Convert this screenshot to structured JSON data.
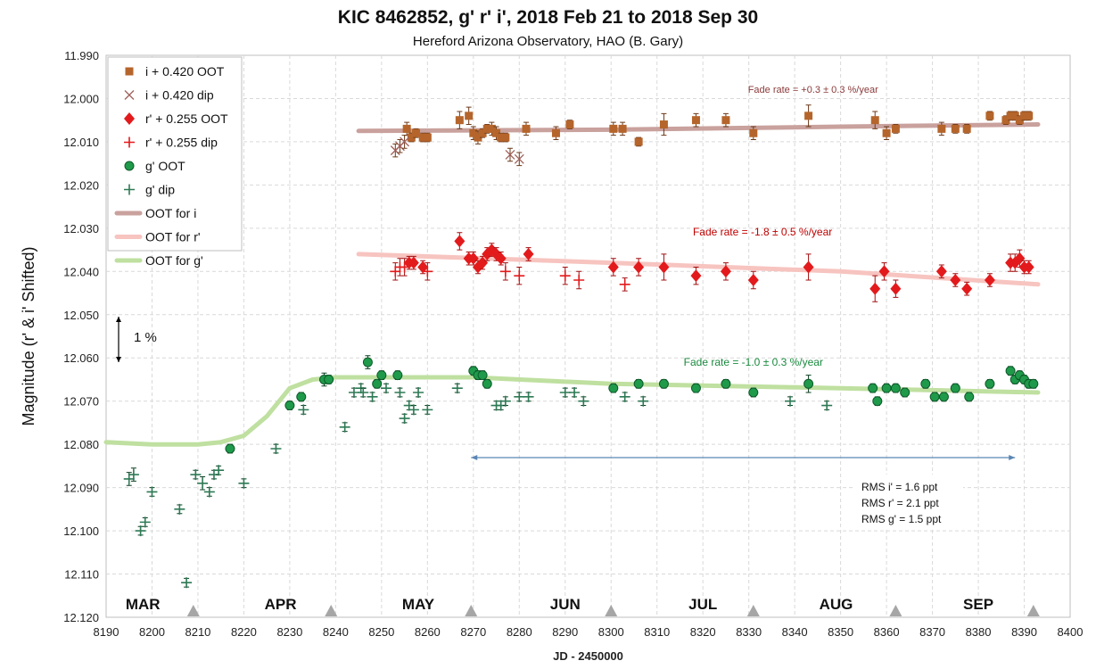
{
  "chart_data": {
    "type": "scatter",
    "title": "KIC 8462852, g' r' i', 2018 Feb 21 to 2018 Sep 30",
    "subtitle": "Hereford Arizona Observatory, HAO (B. Gary)",
    "xlabel": "JD - 2450000",
    "ylabel": "Magnitude  (r' & i' Shifted)",
    "xlim": [
      8190,
      8400
    ],
    "ylim": [
      11.99,
      12.12
    ],
    "y_inverted": true,
    "xticks": [
      "8190",
      "8200",
      "8210",
      "8220",
      "8230",
      "8240",
      "8250",
      "8260",
      "8270",
      "8280",
      "8290",
      "8300",
      "8310",
      "8320",
      "8330",
      "8340",
      "8350",
      "8360",
      "8370",
      "8380",
      "8390",
      "8400"
    ],
    "yticks": [
      "11.990",
      "12.000",
      "12.010",
      "12.020",
      "12.030",
      "12.040",
      "12.050",
      "12.060",
      "12.070",
      "12.080",
      "12.090",
      "12.100",
      "12.110",
      "12.120"
    ],
    "grid": true,
    "legend_position": "top-left",
    "legend": [
      "i + 0.420 OOT",
      "i + 0.420 dip",
      "r' + 0.255 OOT",
      "r' + 0.255 dip",
      "g' OOT",
      "g' dip",
      "OOT for i",
      "OOT for r'",
      "OOT for g'"
    ],
    "colors": {
      "i": "#b5652b",
      "i_dip": "#a0605a",
      "r": "#e31a1c",
      "g": "#1f9a4a",
      "g_dip": "#2e7a55",
      "line_i": "#c9a19d",
      "line_r": "#f7c4c0",
      "line_g": "#bfe0a0",
      "annot_arrow": "#5b86b4"
    },
    "month_labels": [
      "MAR",
      "APR",
      "MAY",
      "JUN",
      "JUL",
      "AUG",
      "SEP"
    ],
    "month_label_x": [
      8198,
      8228,
      8258,
      8290,
      8320,
      8349,
      8380
    ],
    "month_boundaries": [
      8209,
      8239,
      8269.5,
      8300,
      8331,
      8362,
      8392
    ],
    "annotations": {
      "fade_i": "Fade rate = +0.3 ± 0.3 %/year",
      "fade_r": "Fade rate = -1.8 ± 0.5 %/year",
      "fade_g": "Fade rate = -1.0 ± 0.3 %/year",
      "scale_bar": "1 %",
      "rms": [
        "RMS i'  = 1.6 ppt",
        "RMS r'  = 2.1 ppt",
        "RMS g' = 1.5 ppt"
      ]
    },
    "series": [
      {
        "name": "i + 0.420 OOT",
        "marker": "square",
        "x": [
          8255.5,
          8256.5,
          8257.5,
          8259,
          8260,
          8267,
          8269,
          8270,
          8271,
          8272,
          8273,
          8274,
          8275,
          8276,
          8277,
          8281.5,
          8288,
          8291,
          8300.5,
          8302.5,
          8306,
          8311.5,
          8318.5,
          8325,
          8331,
          8343,
          8357.5,
          8360,
          8362,
          8372,
          8375,
          8377.5,
          8382.5,
          8386,
          8387,
          8388,
          8389,
          8390,
          8391
        ],
        "y": [
          12.007,
          12.009,
          12.008,
          12.009,
          12.009,
          12.005,
          12.004,
          12.008,
          12.009,
          12.008,
          12.007,
          12.007,
          12.008,
          12.009,
          12.009,
          12.007,
          12.008,
          12.006,
          12.007,
          12.007,
          12.01,
          12.006,
          12.005,
          12.005,
          12.008,
          12.004,
          12.005,
          12.008,
          12.007,
          12.007,
          12.007,
          12.007,
          12.004,
          12.005,
          12.004,
          12.004,
          12.005,
          12.004,
          12.004
        ],
        "err": [
          0.0015,
          0.001,
          0.001,
          0.001,
          0.001,
          0.002,
          0.002,
          0.0015,
          0.0015,
          0.001,
          0.001,
          0.0015,
          0.0015,
          0.001,
          0.001,
          0.0015,
          0.0015,
          0.001,
          0.0015,
          0.0015,
          0.001,
          0.0025,
          0.0015,
          0.0015,
          0.0015,
          0.0025,
          0.002,
          0.0015,
          0.001,
          0.0015,
          0.001,
          0.001,
          0.001,
          0.001,
          0.001,
          0.001,
          0.001,
          0.001,
          0.001
        ]
      },
      {
        "name": "i + 0.420 dip",
        "marker": "x",
        "x": [
          8253,
          8254,
          8255,
          8278,
          8280
        ],
        "y": [
          12.012,
          12.011,
          12.01,
          12.013,
          12.014
        ],
        "err": [
          0.0015,
          0.0015,
          0.0015,
          0.0015,
          0.0015
        ]
      },
      {
        "name": "r' + 0.255 OOT",
        "marker": "diamond",
        "x": [
          8256,
          8257,
          8259,
          8267,
          8269,
          8270,
          8271,
          8272,
          8273,
          8274,
          8275,
          8276,
          8282,
          8300.5,
          8306,
          8311.5,
          8318.5,
          8325,
          8331,
          8343,
          8357.5,
          8359.5,
          8362,
          8372,
          8375,
          8377.5,
          8382.5,
          8387,
          8388,
          8389,
          8390,
          8391
        ],
        "y": [
          12.038,
          12.038,
          12.039,
          12.033,
          12.037,
          12.037,
          12.039,
          12.038,
          12.036,
          12.035,
          12.036,
          12.037,
          12.036,
          12.039,
          12.039,
          12.039,
          12.041,
          12.04,
          12.042,
          12.039,
          12.044,
          12.04,
          12.044,
          12.04,
          12.042,
          12.044,
          12.042,
          12.038,
          12.038,
          12.037,
          12.039,
          12.039
        ],
        "err": [
          0.0015,
          0.0015,
          0.0015,
          0.002,
          0.0015,
          0.0015,
          0.0015,
          0.0015,
          0.0015,
          0.0015,
          0.0015,
          0.0015,
          0.0015,
          0.002,
          0.002,
          0.003,
          0.002,
          0.002,
          0.002,
          0.003,
          0.003,
          0.002,
          0.002,
          0.0015,
          0.0015,
          0.0015,
          0.0015,
          0.002,
          0.002,
          0.002,
          0.0015,
          0.0015
        ]
      },
      {
        "name": "r' + 0.255 dip",
        "marker": "plus",
        "x": [
          8253,
          8254,
          8255,
          8260,
          8277,
          8280,
          8290,
          8293,
          8303
        ],
        "y": [
          12.04,
          12.039,
          12.039,
          12.04,
          12.04,
          12.041,
          12.041,
          12.042,
          12.043
        ],
        "err": [
          0.002,
          0.002,
          0.002,
          0.002,
          0.002,
          0.002,
          0.002,
          0.002,
          0.0015
        ]
      },
      {
        "name": "g' OOT",
        "marker": "circle",
        "x": [
          8217,
          8230,
          8232.5,
          8237.5,
          8238.5,
          8247,
          8249,
          8250,
          8253.5,
          8270,
          8271,
          8272,
          8273,
          8300.5,
          8306,
          8311.5,
          8318.5,
          8325,
          8331,
          8343,
          8357,
          8358,
          8360,
          8362,
          8364,
          8368.5,
          8370.5,
          8372.5,
          8375,
          8378,
          8382.5,
          8387,
          8388,
          8389,
          8390,
          8391,
          8392
        ],
        "y": [
          12.081,
          12.071,
          12.069,
          12.065,
          12.065,
          12.061,
          12.066,
          12.064,
          12.064,
          12.063,
          12.064,
          12.064,
          12.066,
          12.067,
          12.066,
          12.066,
          12.067,
          12.066,
          12.068,
          12.066,
          12.067,
          12.07,
          12.067,
          12.067,
          12.068,
          12.066,
          12.069,
          12.069,
          12.067,
          12.069,
          12.066,
          12.063,
          12.065,
          12.064,
          12.065,
          12.066,
          12.066
        ],
        "err": [
          0.001,
          0.001,
          0.001,
          0.0015,
          0.001,
          0.0015,
          0.001,
          0.001,
          0.001,
          0.001,
          0.001,
          0.001,
          0.001,
          0.001,
          0.001,
          0.001,
          0.001,
          0.001,
          0.001,
          0.002,
          0.001,
          0.001,
          0.001,
          0.001,
          0.001,
          0.001,
          0.001,
          0.001,
          0.001,
          0.001,
          0.001,
          0.001,
          0.001,
          0.001,
          0.001,
          0.001,
          0.001
        ]
      },
      {
        "name": "g' dip",
        "marker": "plus",
        "x": [
          8195,
          8196,
          8197.5,
          8198.5,
          8200,
          8206,
          8207.5,
          8209.5,
          8211,
          8212.5,
          8213.5,
          8214.5,
          8220,
          8227,
          8233,
          8242,
          8244,
          8245.5,
          8246,
          8248,
          8251,
          8254,
          8255,
          8256,
          8257,
          8258,
          8260,
          8266.5,
          8275,
          8276,
          8277,
          8280,
          8282,
          8290,
          8292,
          8294,
          8303,
          8307,
          8339,
          8347
        ],
        "y": [
          12.088,
          12.087,
          12.1,
          12.098,
          12.091,
          12.095,
          12.112,
          12.087,
          12.089,
          12.091,
          12.087,
          12.086,
          12.089,
          12.081,
          12.072,
          12.076,
          12.068,
          12.067,
          12.068,
          12.069,
          12.067,
          12.068,
          12.074,
          12.071,
          12.072,
          12.068,
          12.072,
          12.067,
          12.071,
          12.071,
          12.07,
          12.069,
          12.069,
          12.068,
          12.068,
          12.07,
          12.069,
          12.07,
          12.07,
          12.071
        ],
        "err": [
          0.0015,
          0.0015,
          0.001,
          0.001,
          0.001,
          0.001,
          0.001,
          0.001,
          0.0015,
          0.001,
          0.001,
          0.001,
          0.001,
          0.001,
          0.001,
          0.001,
          0.001,
          0.001,
          0.001,
          0.001,
          0.001,
          0.001,
          0.001,
          0.001,
          0.001,
          0.001,
          0.001,
          0.001,
          0.001,
          0.001,
          0.001,
          0.001,
          0.001,
          0.001,
          0.001,
          0.001,
          0.001,
          0.001,
          0.001,
          0.001
        ]
      },
      {
        "name": "OOT for i",
        "marker": "line",
        "x": [
          8245,
          8300,
          8350,
          8393
        ],
        "y": [
          12.0075,
          12.0072,
          12.0065,
          12.006
        ]
      },
      {
        "name": "OOT for r'",
        "marker": "line",
        "x": [
          8245,
          8300,
          8350,
          8393
        ],
        "y": [
          12.036,
          12.038,
          12.04,
          12.043
        ]
      },
      {
        "name": "OOT for g'",
        "marker": "line",
        "x": [
          8190,
          8200,
          8205,
          8210,
          8215,
          8220,
          8225,
          8230,
          8235,
          8240,
          8245,
          8255,
          8270,
          8300,
          8350,
          8393
        ],
        "y": [
          12.0795,
          12.08,
          12.08,
          12.08,
          12.0795,
          12.078,
          12.0735,
          12.067,
          12.065,
          12.0645,
          12.0645,
          12.0645,
          12.0645,
          12.066,
          12.067,
          12.068
        ]
      }
    ]
  }
}
